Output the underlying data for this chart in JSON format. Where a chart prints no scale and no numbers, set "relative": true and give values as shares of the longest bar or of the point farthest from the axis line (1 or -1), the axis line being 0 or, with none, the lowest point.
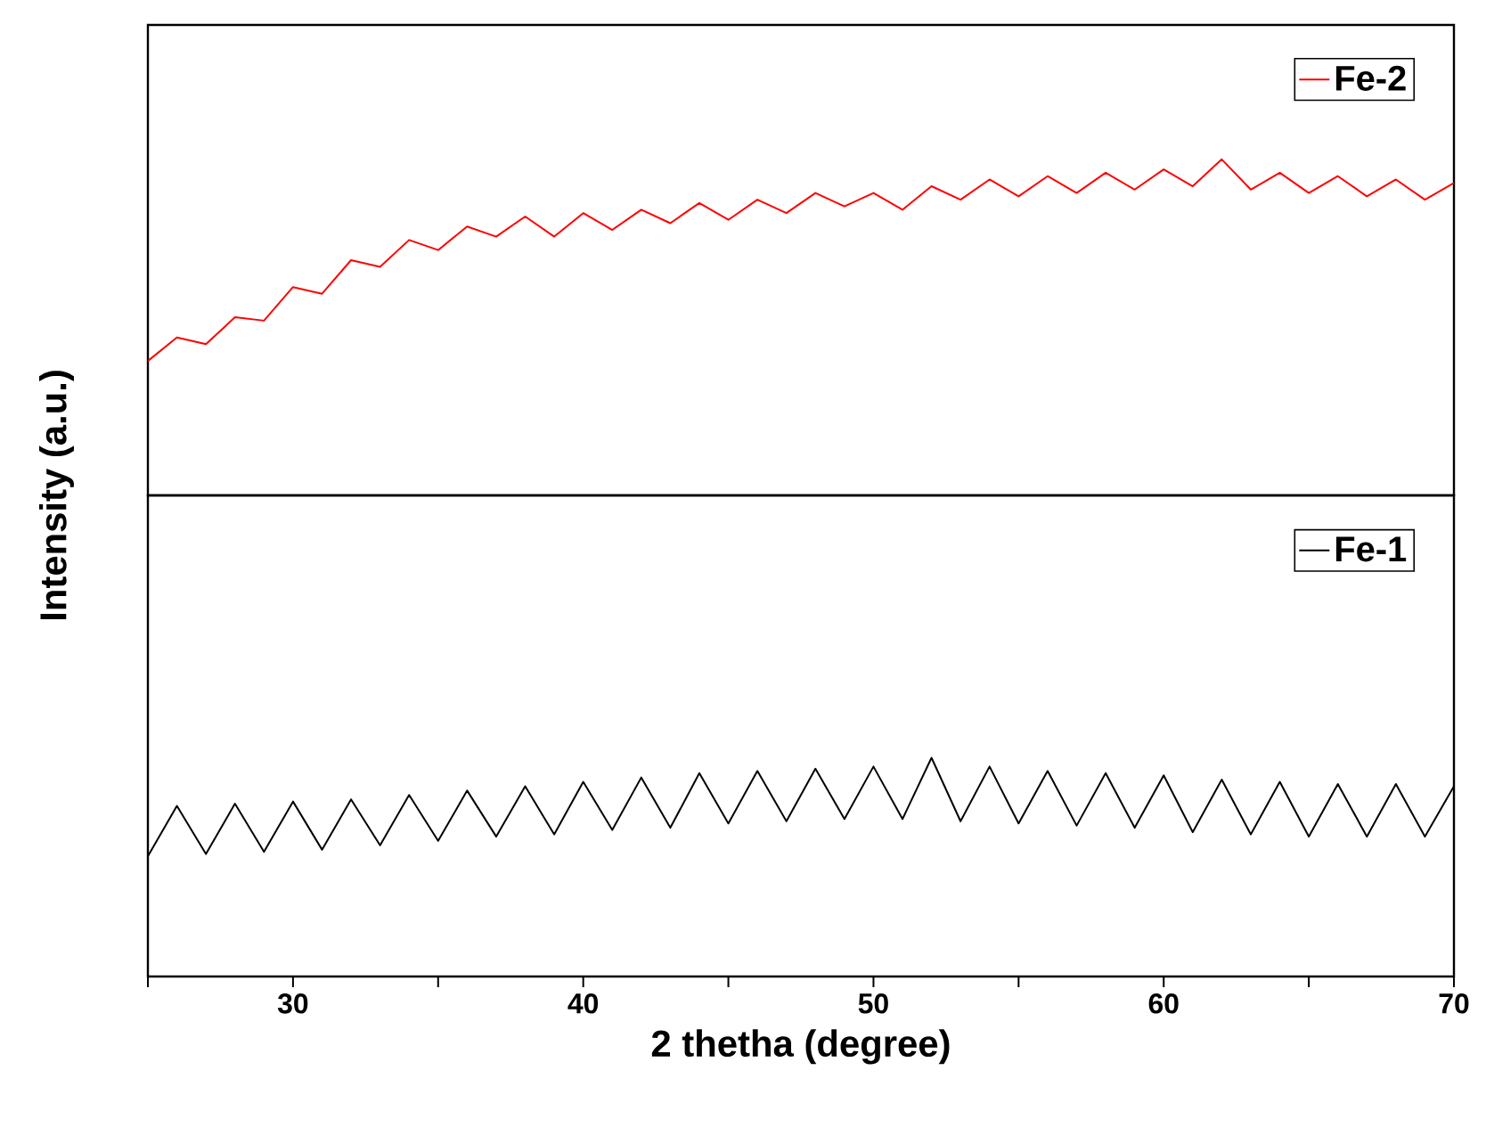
{
  "chart_data": [
    {
      "type": "line",
      "relative": true,
      "xlim": [
        25,
        70
      ],
      "tick_labels": false,
      "legend": "top right",
      "series": [
        {
          "name": "Fe-2",
          "color": "#ff0000",
          "x": [
            25,
            26,
            27,
            28,
            29,
            30,
            31,
            32,
            33,
            34,
            35,
            36,
            37,
            38,
            39,
            40,
            41,
            42,
            43,
            44,
            45,
            46,
            47,
            48,
            49,
            50,
            51,
            52,
            53,
            54,
            55,
            56,
            57,
            58,
            59,
            60,
            61,
            62,
            63,
            64,
            65,
            66,
            67,
            68,
            69,
            70
          ],
          "values": [
            0.4,
            0.47,
            0.45,
            0.53,
            0.52,
            0.62,
            0.6,
            0.7,
            0.68,
            0.76,
            0.73,
            0.8,
            0.77,
            0.83,
            0.77,
            0.84,
            0.79,
            0.85,
            0.81,
            0.87,
            0.82,
            0.88,
            0.84,
            0.9,
            0.86,
            0.9,
            0.85,
            0.92,
            0.88,
            0.94,
            0.89,
            0.95,
            0.9,
            0.96,
            0.91,
            0.97,
            0.92,
            1.0,
            0.91,
            0.96,
            0.9,
            0.95,
            0.89,
            0.94,
            0.88,
            0.93
          ]
        }
      ]
    },
    {
      "type": "line",
      "relative": true,
      "xlim": [
        25,
        70
      ],
      "xticks": [
        {
          "value": 25,
          "label": null
        },
        30,
        {
          "value": 35,
          "label": null
        },
        40,
        {
          "value": 45,
          "label": null
        },
        50,
        {
          "value": 55,
          "label": null
        },
        60,
        {
          "value": 65,
          "label": null
        },
        70
      ],
      "tick_labels": "x",
      "legend": "top right",
      "xlabel": "2 thetha (degree)",
      "ylabel": "Intensity (a.u.)",
      "series": [
        {
          "name": "Fe-1",
          "color": "#000000",
          "x": [
            25,
            26,
            27,
            28,
            29,
            30,
            31,
            32,
            33,
            34,
            35,
            36,
            37,
            38,
            39,
            40,
            41,
            42,
            43,
            44,
            45,
            46,
            47,
            48,
            49,
            50,
            51,
            52,
            53,
            54,
            55,
            56,
            57,
            58,
            59,
            60,
            61,
            62,
            63,
            64,
            65,
            66,
            67,
            68,
            69,
            70
          ],
          "values": [
            0.55,
            0.78,
            0.56,
            0.79,
            0.57,
            0.8,
            0.58,
            0.81,
            0.6,
            0.83,
            0.62,
            0.85,
            0.64,
            0.87,
            0.65,
            0.89,
            0.67,
            0.91,
            0.68,
            0.93,
            0.7,
            0.94,
            0.71,
            0.95,
            0.72,
            0.96,
            0.72,
            1.0,
            0.71,
            0.96,
            0.7,
            0.94,
            0.69,
            0.93,
            0.68,
            0.92,
            0.66,
            0.9,
            0.65,
            0.89,
            0.64,
            0.88,
            0.64,
            0.88,
            0.64,
            0.87
          ]
        }
      ]
    }
  ]
}
